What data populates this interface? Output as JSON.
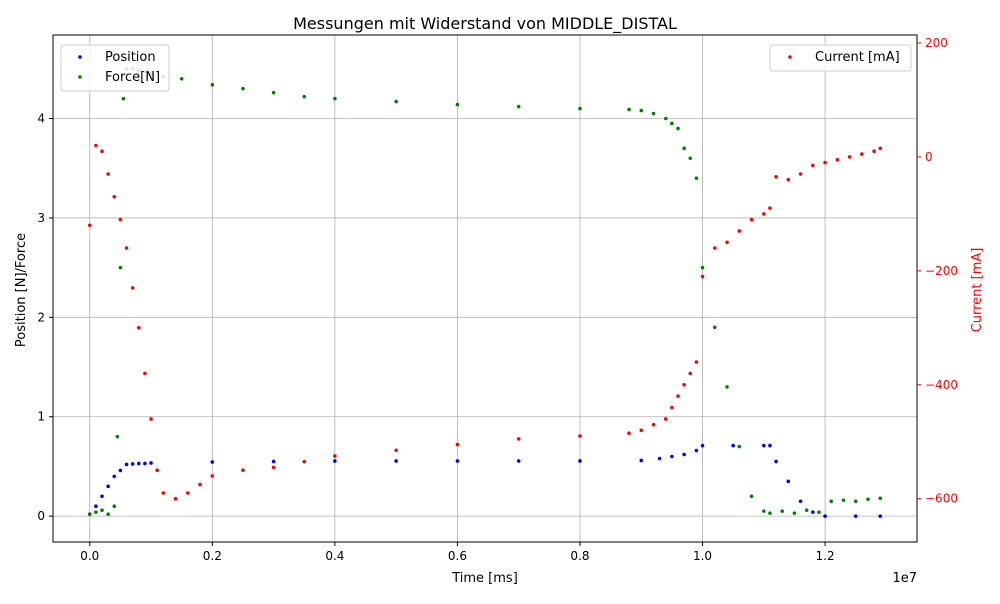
{
  "colors": {
    "position": "#0000ff",
    "force": "#008000",
    "current": "#ff0000",
    "grid": "#b0b0b0",
    "axis": "#000000"
  },
  "chart_data": {
    "type": "scatter",
    "title": "Messungen mit Widerstand von MIDDLE_DISTAL",
    "xlabel": "Time [ms]",
    "x_offset_label": "1e7",
    "ylabel_left": "Position [N]/Force",
    "ylabel_right": "Current [mA]",
    "grid": true,
    "xlim": [
      -0.06,
      1.35
    ],
    "ylim_left": [
      -0.26,
      4.84
    ],
    "ylim_right": [
      -676,
      214
    ],
    "x_ticks": [
      0.0,
      0.2,
      0.4,
      0.6,
      0.8,
      1.0,
      1.2
    ],
    "x_tick_labels": [
      "0.0",
      "0.2",
      "0.4",
      "0.6",
      "0.8",
      "1.0",
      "1.2"
    ],
    "y_left_ticks": [
      0,
      1,
      2,
      3,
      4
    ],
    "y_left_tick_labels": [
      "0",
      "1",
      "2",
      "3",
      "4"
    ],
    "y_right_ticks": [
      200,
      0,
      -200,
      -400,
      -600
    ],
    "y_right_tick_labels": [
      "200",
      "0",
      "−200",
      "−400",
      "−600"
    ],
    "legend_left": {
      "placement": "top-left",
      "entries": [
        "Position",
        "Force[N]"
      ]
    },
    "legend_right": {
      "placement": "top-right",
      "entries": [
        "Current [mA]"
      ]
    },
    "series": [
      {
        "name": "Position",
        "axis": "left",
        "color": "#0000ff",
        "x": [
          0.0,
          0.01,
          0.02,
          0.03,
          0.04,
          0.05,
          0.06,
          0.07,
          0.08,
          0.09,
          0.1,
          0.2,
          0.3,
          0.4,
          0.5,
          0.6,
          0.7,
          0.8,
          0.9,
          0.93,
          0.95,
          0.97,
          0.99,
          1.0,
          1.05,
          1.1,
          1.11,
          1.12,
          1.14,
          1.16,
          1.18,
          1.2,
          1.25,
          1.29
        ],
        "y": [
          0.02,
          0.1,
          0.2,
          0.3,
          0.4,
          0.46,
          0.52,
          0.525,
          0.53,
          0.53,
          0.535,
          0.545,
          0.55,
          0.555,
          0.555,
          0.555,
          0.555,
          0.555,
          0.56,
          0.58,
          0.6,
          0.62,
          0.66,
          0.71,
          0.71,
          0.71,
          0.71,
          0.55,
          0.35,
          0.15,
          0.04,
          0.0,
          0.0,
          0.0
        ]
      },
      {
        "name": "Force[N]",
        "axis": "left",
        "color": "#008000",
        "x": [
          0.0,
          0.01,
          0.02,
          0.03,
          0.04,
          0.045,
          0.05,
          0.055,
          0.06,
          0.07,
          0.08,
          0.09,
          0.1,
          0.12,
          0.15,
          0.2,
          0.25,
          0.3,
          0.35,
          0.4,
          0.5,
          0.6,
          0.7,
          0.8,
          0.88,
          0.9,
          0.92,
          0.94,
          0.95,
          0.96,
          0.97,
          0.98,
          0.99,
          1.0,
          1.02,
          1.04,
          1.06,
          1.08,
          1.1,
          1.11,
          1.13,
          1.15,
          1.17,
          1.19,
          1.21,
          1.23,
          1.25,
          1.27,
          1.29
        ],
        "y": [
          0.02,
          0.04,
          0.06,
          0.02,
          0.1,
          0.8,
          2.5,
          4.2,
          4.5,
          4.5,
          4.48,
          4.47,
          4.45,
          4.42,
          4.4,
          4.34,
          4.3,
          4.26,
          4.22,
          4.2,
          4.17,
          4.14,
          4.12,
          4.1,
          4.09,
          4.08,
          4.05,
          4.0,
          3.95,
          3.9,
          3.7,
          3.6,
          3.4,
          2.5,
          1.9,
          1.3,
          0.7,
          0.2,
          0.05,
          0.03,
          0.05,
          0.03,
          0.06,
          0.04,
          0.15,
          0.16,
          0.15,
          0.17,
          0.18
        ]
      },
      {
        "name": "Current [mA]",
        "axis": "right",
        "color": "#ff0000",
        "x": [
          0.0,
          0.01,
          0.02,
          0.03,
          0.04,
          0.05,
          0.06,
          0.07,
          0.08,
          0.09,
          0.1,
          0.11,
          0.12,
          0.14,
          0.16,
          0.18,
          0.2,
          0.25,
          0.3,
          0.35,
          0.4,
          0.5,
          0.6,
          0.7,
          0.8,
          0.88,
          0.9,
          0.92,
          0.94,
          0.95,
          0.96,
          0.97,
          0.98,
          0.99,
          1.0,
          1.02,
          1.04,
          1.06,
          1.08,
          1.1,
          1.11,
          1.12,
          1.14,
          1.16,
          1.18,
          1.2,
          1.22,
          1.24,
          1.26,
          1.28,
          1.29
        ],
        "y": [
          -120,
          20,
          10,
          -30,
          -70,
          -110,
          -160,
          -230,
          -300,
          -380,
          -460,
          -550,
          -590,
          -600,
          -590,
          -575,
          -560,
          -550,
          -545,
          -535,
          -525,
          -515,
          -505,
          -495,
          -490,
          -485,
          -480,
          -470,
          -460,
          -440,
          -420,
          -400,
          -380,
          -360,
          -210,
          -160,
          -150,
          -130,
          -110,
          -100,
          -90,
          -35,
          -40,
          -30,
          -15,
          -10,
          -5,
          0,
          5,
          10,
          15
        ]
      }
    ]
  }
}
